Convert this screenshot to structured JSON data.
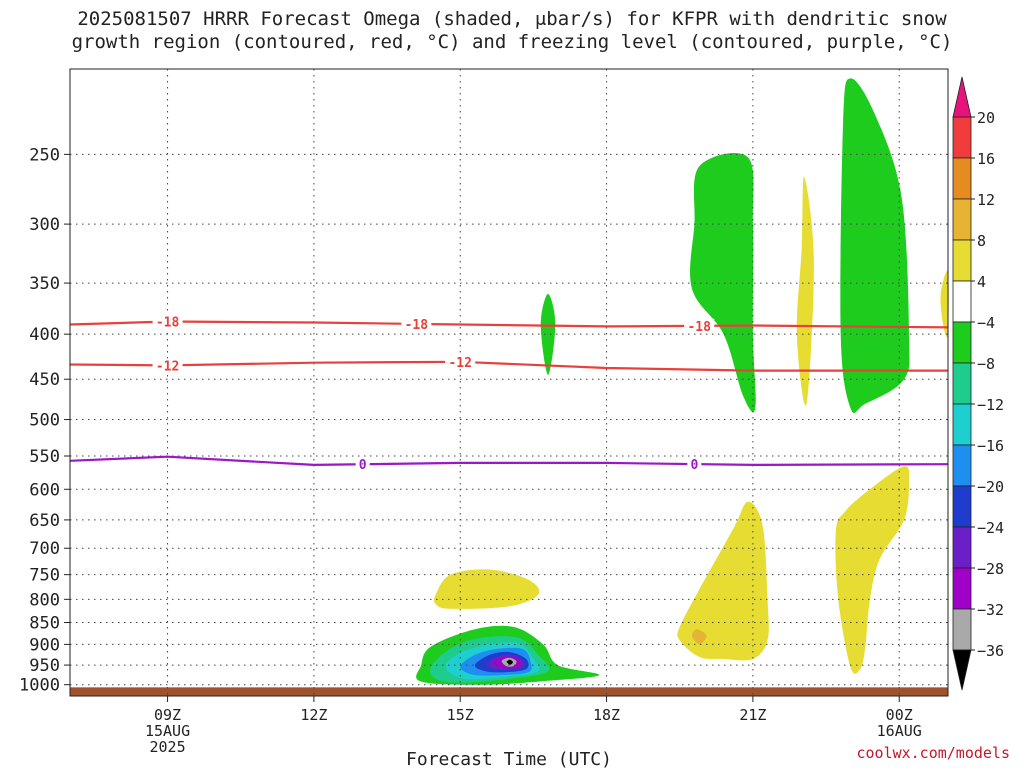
{
  "title": {
    "line1": "2025081507 HRRR Forecast Omega (shaded, μbar/s) for KFPR with dendritic snow",
    "line2": "growth region (contoured, red, °C) and freezing level (contoured, purple, °C)"
  },
  "credit": "coolwx.com/models",
  "chart_data": {
    "type": "heatmap",
    "xlabel": "Forecast Time (UTC)",
    "ylabel": "",
    "x_range_hours_utc": [
      7,
      25
    ],
    "y_range_hpa": [
      1030,
      200
    ],
    "y_scale": "log",
    "grid": true,
    "y_ticks": [
      250,
      300,
      350,
      400,
      450,
      500,
      550,
      600,
      650,
      700,
      750,
      800,
      850,
      900,
      950,
      1000
    ],
    "y_tick_labels": [
      "250",
      "300",
      "350",
      "400",
      "450",
      "500",
      "550",
      "600",
      "650",
      "700",
      "750",
      "800",
      "850",
      "900",
      "950",
      "1000"
    ],
    "x_ticks": [
      {
        "hour": 9,
        "label": "09Z",
        "sub1": "15AUG",
        "sub2": "2025"
      },
      {
        "hour": 12,
        "label": "12Z",
        "sub1": "",
        "sub2": ""
      },
      {
        "hour": 15,
        "label": "15Z",
        "sub1": "",
        "sub2": ""
      },
      {
        "hour": 18,
        "label": "18Z",
        "sub1": "",
        "sub2": ""
      },
      {
        "hour": 21,
        "label": "21Z",
        "sub1": "",
        "sub2": ""
      },
      {
        "hour": 24,
        "label": "00Z",
        "sub1": "16AUG",
        "sub2": ""
      }
    ],
    "colorbar": {
      "bands": [
        {
          "from": -36,
          "to": -32,
          "color": "#a9a9a9"
        },
        {
          "from": -32,
          "to": -28,
          "color": "#a000c8"
        },
        {
          "from": -28,
          "to": -24,
          "color": "#6a1fc9"
        },
        {
          "from": -24,
          "to": -20,
          "color": "#1e3ccd"
        },
        {
          "from": -20,
          "to": -16,
          "color": "#1e8ff0"
        },
        {
          "from": -16,
          "to": -12,
          "color": "#1ecfcf"
        },
        {
          "from": -12,
          "to": -8,
          "color": "#1ecc8c"
        },
        {
          "from": -8,
          "to": -4,
          "color": "#1ecc1e"
        },
        {
          "from": -4,
          "to": 4,
          "color": "#ffffff"
        },
        {
          "from": 4,
          "to": 8,
          "color": "#e6dc32"
        },
        {
          "from": 8,
          "to": 12,
          "color": "#e6b432"
        },
        {
          "from": 12,
          "to": 16,
          "color": "#e68c1e"
        },
        {
          "from": 16,
          "to": 20,
          "color": "#f03c3c"
        }
      ],
      "labels": [
        20,
        16,
        12,
        8,
        4,
        -4,
        -8,
        -12,
        -16,
        -20,
        -24,
        -28,
        -32,
        -36
      ],
      "over_color": "#e6147a",
      "under_color": "#000000"
    },
    "omega_regions": [
      {
        "value_class": "-8..-4",
        "color": "#1ecc1e",
        "points": [
          [
            16.65,
            390
          ],
          [
            16.8,
            360
          ],
          [
            16.95,
            390
          ],
          [
            16.8,
            445
          ]
        ]
      },
      {
        "value_class": "-8..-4",
        "color": "#1ecc1e",
        "points": [
          [
            19.8,
            300
          ],
          [
            19.9,
            258
          ],
          [
            20.9,
            252
          ],
          [
            21.0,
            300
          ],
          [
            21.0,
            400
          ],
          [
            21.05,
            485
          ],
          [
            20.8,
            470
          ],
          [
            20.4,
            400
          ],
          [
            19.75,
            355
          ]
        ]
      },
      {
        "value_class": "-8..-4",
        "color": "#1ecc1e",
        "points": [
          [
            23.0,
            205
          ],
          [
            23.5,
            225
          ],
          [
            24.05,
            280
          ],
          [
            24.2,
            400
          ],
          [
            24.1,
            450
          ],
          [
            23.3,
            480
          ],
          [
            23.0,
            485
          ],
          [
            22.8,
            400
          ],
          [
            22.85,
            230
          ]
        ]
      },
      {
        "value_class": "4..8",
        "color": "#e6dc32",
        "points": [
          [
            22.0,
            320
          ],
          [
            22.05,
            265
          ],
          [
            22.25,
            330
          ],
          [
            22.1,
            480
          ],
          [
            21.9,
            400
          ]
        ]
      },
      {
        "value_class": "4..8",
        "color": "#e6dc32",
        "points": [
          [
            24.85,
            360
          ],
          [
            25.0,
            340
          ],
          [
            25.0,
            400
          ],
          [
            24.9,
            390
          ]
        ]
      },
      {
        "value_class": "4..8",
        "color": "#e6dc32",
        "points": [
          [
            14.5,
            790
          ],
          [
            14.8,
            750
          ],
          [
            15.6,
            740
          ],
          [
            16.4,
            760
          ],
          [
            16.6,
            790
          ],
          [
            16.0,
            815
          ],
          [
            14.8,
            820
          ],
          [
            14.5,
            810
          ]
        ]
      },
      {
        "value_class": "4..8",
        "color": "#e6dc32",
        "points": [
          [
            19.5,
            860
          ],
          [
            19.9,
            780
          ],
          [
            20.6,
            665
          ],
          [
            20.9,
            620
          ],
          [
            21.2,
            660
          ],
          [
            21.3,
            800
          ],
          [
            21.3,
            890
          ],
          [
            21.0,
            935
          ],
          [
            20.4,
            935
          ],
          [
            19.9,
            930
          ],
          [
            19.5,
            890
          ]
        ]
      },
      {
        "value_class": "4..8",
        "color": "#e6dc32",
        "points": [
          [
            22.7,
            670
          ],
          [
            22.9,
            635
          ],
          [
            23.4,
            600
          ],
          [
            24.1,
            565
          ],
          [
            24.2,
            590
          ],
          [
            24.1,
            650
          ],
          [
            23.6,
            720
          ],
          [
            23.4,
            800
          ],
          [
            23.3,
            910
          ],
          [
            23.2,
            960
          ],
          [
            23.0,
            955
          ],
          [
            22.75,
            800
          ]
        ]
      },
      {
        "value_class": "8..12",
        "color": "#e6b432",
        "points": [
          [
            19.85,
            865
          ],
          [
            20.05,
            880
          ],
          [
            19.9,
            900
          ],
          [
            19.75,
            880
          ]
        ]
      },
      {
        "value_class": "-8..-4",
        "color": "#1ecc1e",
        "points": [
          [
            14.2,
            950
          ],
          [
            14.4,
            905
          ],
          [
            15.3,
            865
          ],
          [
            16.1,
            860
          ],
          [
            16.7,
            900
          ],
          [
            17.0,
            950
          ],
          [
            17.85,
            975
          ],
          [
            16.8,
            990
          ],
          [
            15.5,
            1000
          ],
          [
            14.2,
            992
          ]
        ]
      },
      {
        "value_class": "-12..-8",
        "color": "#1ecc8c",
        "points": [
          [
            14.4,
            955
          ],
          [
            14.8,
            910
          ],
          [
            15.4,
            885
          ],
          [
            16.2,
            885
          ],
          [
            16.6,
            925
          ],
          [
            16.8,
            965
          ],
          [
            16.0,
            985
          ],
          [
            15.0,
            995
          ],
          [
            14.5,
            985
          ]
        ]
      },
      {
        "value_class": "-16..-12",
        "color": "#1ecfcf",
        "points": [
          [
            14.7,
            955
          ],
          [
            15.0,
            920
          ],
          [
            15.6,
            900
          ],
          [
            16.2,
            898
          ],
          [
            16.5,
            935
          ],
          [
            16.6,
            965
          ],
          [
            16.0,
            978
          ],
          [
            15.1,
            985
          ]
        ]
      },
      {
        "value_class": "-20..-16",
        "color": "#1e8ff0",
        "points": [
          [
            15.0,
            955
          ],
          [
            15.3,
            925
          ],
          [
            15.8,
            910
          ],
          [
            16.3,
            912
          ],
          [
            16.45,
            945
          ],
          [
            16.4,
            968
          ],
          [
            15.9,
            975
          ],
          [
            15.3,
            975
          ]
        ]
      },
      {
        "value_class": "-24..-20",
        "color": "#1e3ccd",
        "points": [
          [
            15.3,
            950
          ],
          [
            15.6,
            925
          ],
          [
            16.0,
            918
          ],
          [
            16.35,
            935
          ],
          [
            16.35,
            960
          ],
          [
            15.9,
            968
          ],
          [
            15.5,
            965
          ]
        ]
      },
      {
        "value_class": "-28..-24",
        "color": "#6a1fc9",
        "points": [
          [
            15.55,
            945
          ],
          [
            15.8,
            928
          ],
          [
            16.1,
            925
          ],
          [
            16.3,
            942
          ],
          [
            16.25,
            958
          ],
          [
            15.9,
            962
          ],
          [
            15.65,
            958
          ]
        ]
      },
      {
        "value_class": "-32..-28",
        "color": "#a000c8",
        "points": [
          [
            15.7,
            942
          ],
          [
            15.95,
            930
          ],
          [
            16.2,
            936
          ],
          [
            16.22,
            952
          ],
          [
            15.95,
            958
          ],
          [
            15.75,
            952
          ]
        ]
      },
      {
        "value_class": "-36..-32",
        "color": "#a9a9a9",
        "points": [
          [
            15.85,
            940
          ],
          [
            16.0,
            932
          ],
          [
            16.15,
            940
          ],
          [
            16.1,
            952
          ],
          [
            15.95,
            953
          ]
        ]
      },
      {
        "value_class": "< -36",
        "color": "#000000",
        "points": [
          [
            15.95,
            942
          ],
          [
            16.02,
            937
          ],
          [
            16.08,
            943
          ],
          [
            16.02,
            949
          ]
        ]
      }
    ],
    "isotherm_lines": [
      {
        "label": "-18",
        "color": "#e8413c",
        "points": [
          [
            7,
            390
          ],
          [
            9,
            387
          ],
          [
            12,
            388
          ],
          [
            15,
            390
          ],
          [
            18,
            392
          ],
          [
            21,
            391
          ],
          [
            25,
            393
          ]
        ],
        "label_hours": [
          9.0,
          14.1,
          19.9
        ]
      },
      {
        "label": "-12",
        "color": "#e8413c",
        "points": [
          [
            7,
            433
          ],
          [
            9,
            434
          ],
          [
            12,
            431
          ],
          [
            15,
            430
          ],
          [
            18,
            437
          ],
          [
            21,
            440
          ],
          [
            25,
            440
          ]
        ],
        "label_hours": [
          9.0,
          15.0
        ]
      },
      {
        "label": "0",
        "color": "#9a18c8",
        "points": [
          [
            7,
            557
          ],
          [
            9,
            551
          ],
          [
            12,
            563
          ],
          [
            15,
            560
          ],
          [
            18,
            560
          ],
          [
            21,
            563
          ],
          [
            25,
            562
          ]
        ],
        "label_hours": [
          13.0,
          19.8
        ]
      }
    ],
    "terrain": {
      "color": "#a0522d",
      "surface_hpa": 1007,
      "bottom_hpa": 1030
    }
  }
}
